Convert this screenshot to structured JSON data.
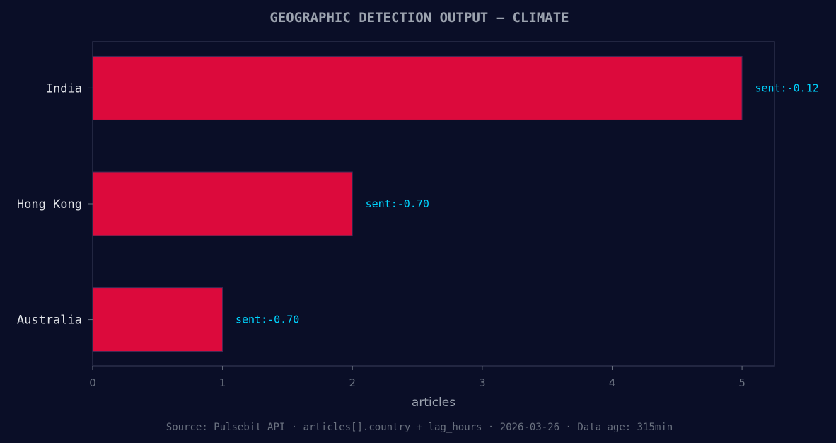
{
  "chart_data": {
    "type": "bar",
    "orientation": "horizontal",
    "title": "GEOGRAPHIC DETECTION OUTPUT — CLIMATE",
    "xlabel": "articles",
    "ylabel": "",
    "categories": [
      "India",
      "Hong Kong",
      "Australia"
    ],
    "values": [
      5,
      2,
      1
    ],
    "annotations": [
      "sent:-0.12",
      "sent:-0.70",
      "sent:-0.70"
    ],
    "xlim": [
      0,
      5.25
    ],
    "xticks": [
      "0",
      "1",
      "2",
      "3",
      "4",
      "5"
    ],
    "grid": false,
    "footer": "Source: Pulsebit API · articles[].country + lag_hours · 2026-03-26 · Data age: 315min",
    "colors": {
      "background": "#0a0e27",
      "bar": "#dc0a3c",
      "annotation": "#00d4ff",
      "title": "#9ca3af",
      "axis": "#2a2f4a"
    }
  }
}
